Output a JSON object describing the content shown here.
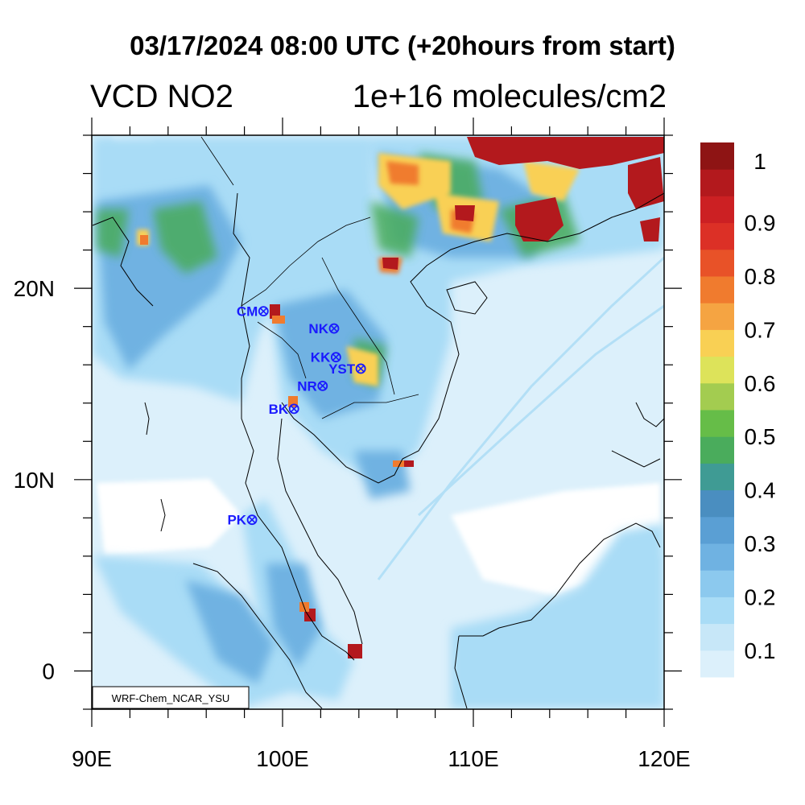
{
  "title": "03/17/2024 08:00 UTC (+20hours from start)",
  "variable": "VCD NO2",
  "units": "1e+16 molecules/cm2",
  "credit": "WRF-Chem_NCAR_YSU",
  "map_extent": {
    "lon_min": 90,
    "lon_max": 120,
    "lat_min": -2,
    "lat_max": 28
  },
  "x_ticks": [
    {
      "lon": 90,
      "label": "90E"
    },
    {
      "lon": 100,
      "label": "100E"
    },
    {
      "lon": 110,
      "label": "110E"
    },
    {
      "lon": 120,
      "label": "120E"
    }
  ],
  "y_ticks": [
    {
      "lat": 0,
      "label": "0"
    },
    {
      "lat": 10,
      "label": "10N"
    },
    {
      "lat": 20,
      "label": "20N"
    }
  ],
  "colorbar": {
    "colors": [
      "#dcf0fb",
      "#c7e7f8",
      "#a9dcf6",
      "#8cc9ee",
      "#6fb2e2",
      "#5a9fd4",
      "#4a8ec0",
      "#3f9b94",
      "#4aac5c",
      "#66bd48",
      "#a3cc50",
      "#dde35a",
      "#f9d054",
      "#f5a442",
      "#f07b2e",
      "#e85228",
      "#dc3026",
      "#cc2023",
      "#b3191d",
      "#8e1414"
    ],
    "labels": [
      "0.1",
      "0.2",
      "0.3",
      "0.4",
      "0.5",
      "0.6",
      "0.7",
      "0.8",
      "0.9",
      "1"
    ]
  },
  "stations": [
    {
      "code": "CM",
      "lon": 99.0,
      "lat": 18.8
    },
    {
      "code": "NK",
      "lon": 102.7,
      "lat": 17.9
    },
    {
      "code": "KK",
      "lon": 102.8,
      "lat": 16.4
    },
    {
      "code": "YST",
      "lon": 104.1,
      "lat": 15.8
    },
    {
      "code": "NR",
      "lon": 102.1,
      "lat": 14.9
    },
    {
      "code": "BK",
      "lon": 100.6,
      "lat": 13.7
    },
    {
      "code": "PK",
      "lon": 98.4,
      "lat": 7.9
    }
  ],
  "symbols": {
    "station_marker": "circled-cross-icon",
    "station_color": "#1a1aff"
  }
}
